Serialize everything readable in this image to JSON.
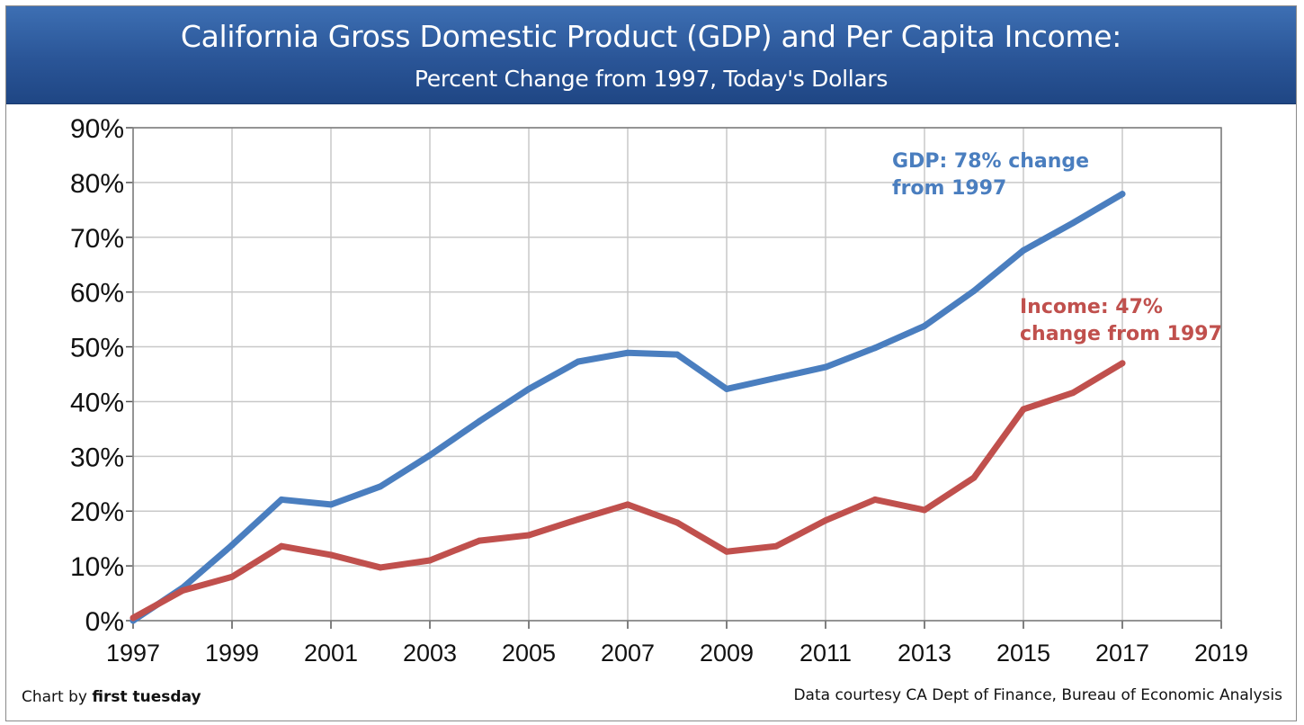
{
  "header": {
    "title": "California Gross Domestic Product (GDP) and Per Capita Income:",
    "subtitle": "Percent Change from 1997, Today's Dollars"
  },
  "footer": {
    "credit_prefix": "Chart by ",
    "credit_name": "first tuesday",
    "source": "Data courtesy CA Dept of Finance, Bureau of Economic Analysis"
  },
  "chart_data": {
    "type": "line",
    "title": "California Gross Domestic Product (GDP) and Per Capita Income:",
    "subtitle": "Percent Change from 1997, Today's Dollars",
    "xlim": [
      1997,
      2019
    ],
    "ylim": [
      0,
      90
    ],
    "x_ticks": [
      "1997",
      "1999",
      "2001",
      "2003",
      "2005",
      "2007",
      "2009",
      "2011",
      "2013",
      "2015",
      "2017",
      "2019"
    ],
    "y_ticks": [
      "0%",
      "10%",
      "20%",
      "30%",
      "40%",
      "50%",
      "60%",
      "70%",
      "80%",
      "90%"
    ],
    "grid": true,
    "x": [
      1997,
      1998,
      1999,
      2000,
      2001,
      2002,
      2003,
      2004,
      2005,
      2006,
      2007,
      2008,
      2009,
      2010,
      2011,
      2012,
      2013,
      2014,
      2015,
      2016,
      2017
    ],
    "series": [
      {
        "key": "gdp",
        "color": "#4a7ebf",
        "values": [
          0,
          6,
          13.8,
          22.1,
          21.2,
          24.5,
          30.2,
          36.4,
          42.3,
          47.3,
          48.9,
          48.6,
          42.3,
          44.3,
          46.3,
          49.8,
          53.8,
          60.2,
          67.6,
          72.6,
          77.9
        ]
      },
      {
        "key": "income",
        "color": "#c0504d",
        "values": [
          0.5,
          5.5,
          8.0,
          13.6,
          12.0,
          9.7,
          11.0,
          14.6,
          15.6,
          18.5,
          21.2,
          17.9,
          12.6,
          13.6,
          18.3,
          22.1,
          20.2,
          26.1,
          38.6,
          41.6,
          47.0
        ]
      }
    ],
    "annotations": [
      {
        "series": "gdp",
        "lines": [
          "GDP: 78% change",
          "from 1997"
        ],
        "color": "#4a7ebf"
      },
      {
        "series": "income",
        "lines": [
          "Income: 47%",
          "change from 1997"
        ],
        "color": "#c0504d"
      }
    ]
  }
}
